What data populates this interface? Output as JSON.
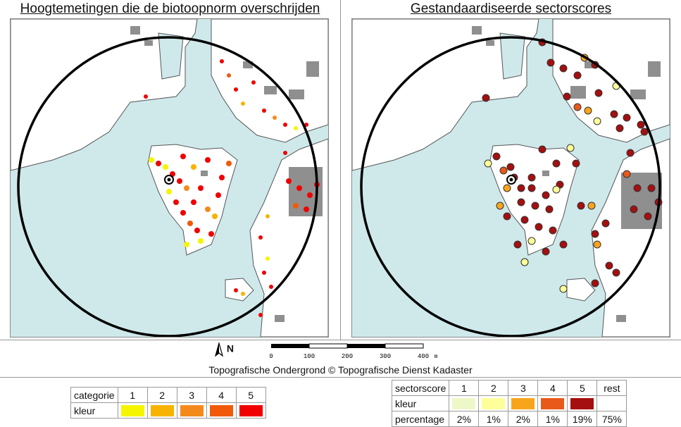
{
  "left_panel": {
    "title": "Hoogtemetingen die de biotoopnorm overschrijden"
  },
  "right_panel": {
    "title": "Gestandaardiseerde sectorscores"
  },
  "north_arrow": {
    "label": "N"
  },
  "scalebar": {
    "ticks": [
      "0",
      "100",
      "200",
      "300",
      "400"
    ],
    "unit": "m"
  },
  "credit": "Topografische Ondergrond © Topografische Dienst Kadaster",
  "legend_left": {
    "header_label": "categorie",
    "color_label": "kleur",
    "categories": [
      "1",
      "2",
      "3",
      "4",
      "5"
    ],
    "colors": [
      "#f5f500",
      "#f7b300",
      "#f58a1c",
      "#f05a0a",
      "#f00000"
    ]
  },
  "legend_right": {
    "header_label": "sectorscore",
    "color_label": "kleur",
    "percentage_label": "percentage",
    "categories": [
      "1",
      "2",
      "3",
      "4",
      "5",
      "rest"
    ],
    "colors": [
      "#eef7c8",
      "#ffff99",
      "#f9a51c",
      "#e8591a",
      "#a50f0f",
      "#ffffff"
    ],
    "percentages": [
      "2%",
      "1%",
      "2%",
      "1%",
      "19%",
      "75%"
    ]
  },
  "colors": {
    "water": "#cfe9eb",
    "land": "#ffffff",
    "buildings": "#8f8f8f",
    "circle": "#000000"
  }
}
